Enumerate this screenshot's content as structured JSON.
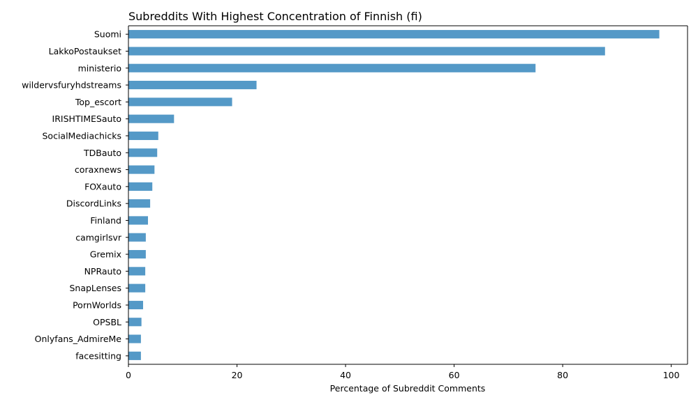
{
  "chart_data": {
    "type": "bar",
    "orientation": "horizontal",
    "title": "Subreddits With Highest Concentration of Finnish (fi)",
    "xlabel": "Percentage of Subreddit Comments",
    "ylabel": "",
    "xlim": [
      0,
      103
    ],
    "xticks": [
      0,
      20,
      40,
      60,
      80,
      100
    ],
    "grid": false,
    "bar_color": "#5499c7",
    "categories": [
      "Suomi",
      "LakkoPostaukset",
      "ministerio",
      "wildervsfuryhdstreams",
      "Top_escort",
      "IRISHTIMESauto",
      "SocialMediachicks",
      "TDBauto",
      "coraxnews",
      "FOXauto",
      "DiscordLinks",
      "Finland",
      "camgirlsvr",
      "Gremix",
      "NPRauto",
      "SnapLenses",
      "PornWorlds",
      "OPSBL",
      "Onlyfans_AdmireMe",
      "facesitting"
    ],
    "values": [
      97.8,
      87.8,
      75.0,
      23.6,
      19.1,
      8.4,
      5.5,
      5.3,
      4.8,
      4.4,
      4.0,
      3.6,
      3.2,
      3.2,
      3.1,
      3.1,
      2.7,
      2.4,
      2.3,
      2.3
    ]
  }
}
